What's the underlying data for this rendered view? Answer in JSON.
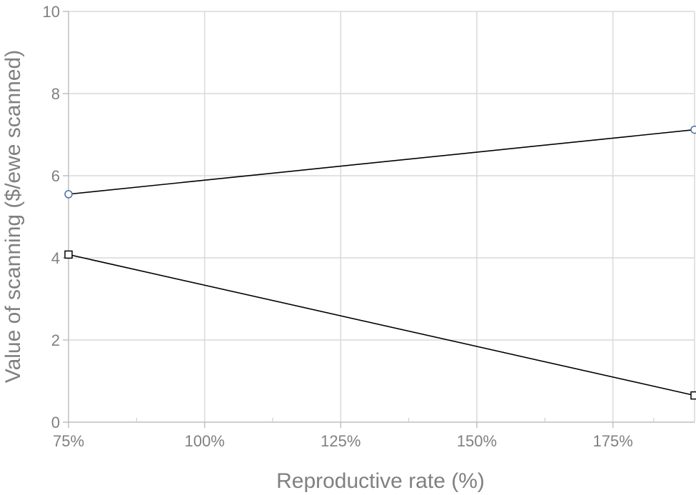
{
  "chart_data": {
    "type": "line",
    "title": "",
    "xlabel": "Reproductive rate (%)",
    "ylabel": "Value of scanning ($/ewe scanned)",
    "xlim": [
      75,
      190
    ],
    "ylim": [
      0,
      10
    ],
    "x_ticks": [
      75,
      100,
      125,
      150,
      175
    ],
    "x_tick_labels": [
      "75%",
      "100%",
      "125%",
      "150%",
      "175%"
    ],
    "y_ticks": [
      0,
      2,
      4,
      6,
      8,
      10
    ],
    "y_tick_labels": [
      "0",
      "2",
      "4",
      "6",
      "8",
      "10"
    ],
    "grid": true,
    "legend": "none",
    "series": [
      {
        "marker": "circle",
        "marker_color": "#4a6fa5",
        "line_color": "#000000",
        "x": [
          75,
          190
        ],
        "y": [
          5.55,
          7.12
        ]
      },
      {
        "marker": "square",
        "marker_color": "#000000",
        "line_color": "#000000",
        "x": [
          75,
          190
        ],
        "y": [
          4.08,
          0.65
        ]
      }
    ]
  }
}
